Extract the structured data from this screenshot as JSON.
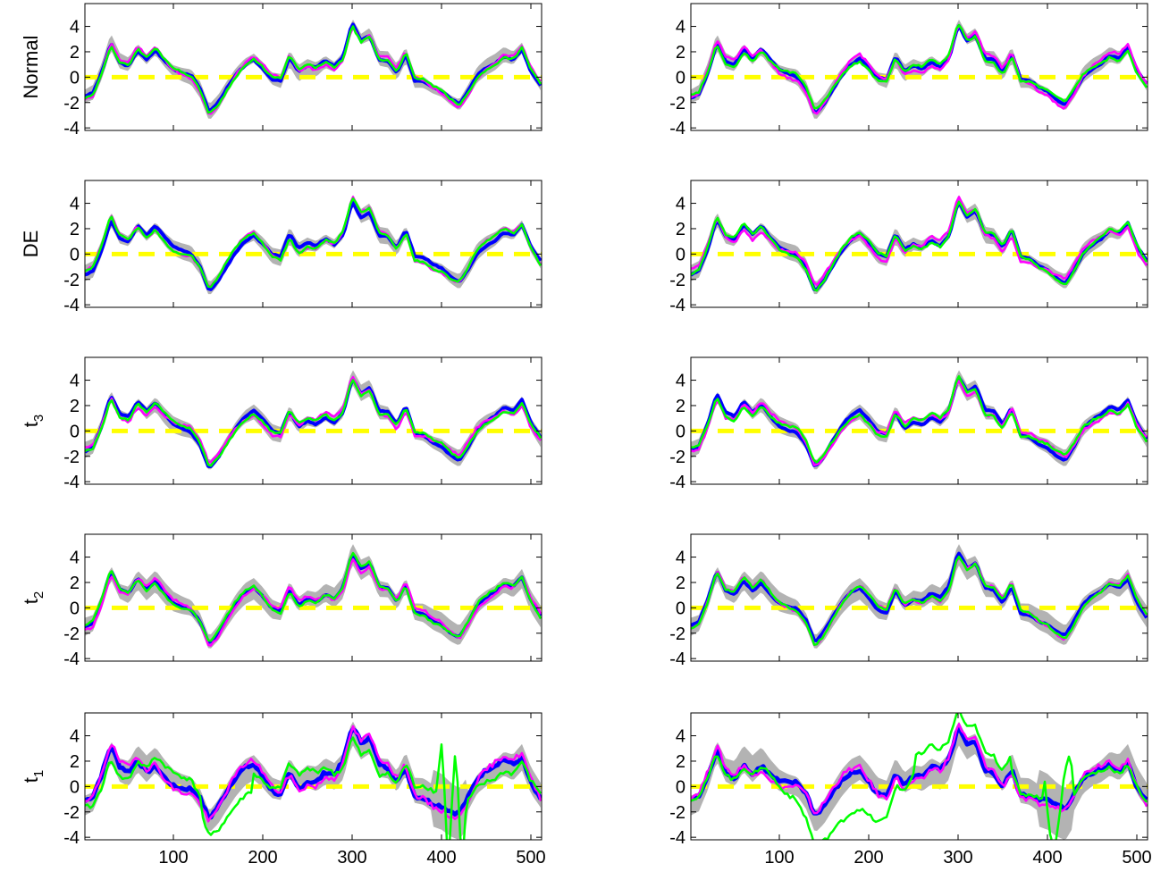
{
  "colors": {
    "band": "#b3b3b3",
    "true_curve": "#0000ff",
    "estimate_magenta": "#ff00ff",
    "estimate_green": "#00ff00",
    "zero_line": "#ffff00",
    "axes": "#000000"
  },
  "chart_data": {
    "type": "line",
    "layout": "5 rows x 2 columns of line plots with grey uncertainty bands",
    "x_range": [
      1,
      512
    ],
    "y_range": [
      -4.2,
      5.8
    ],
    "x_ticks": [
      100,
      200,
      300,
      400,
      500
    ],
    "y_ticks": [
      -4,
      -2,
      0,
      2,
      4
    ],
    "row_labels": [
      {
        "text": "Normal",
        "sub": ""
      },
      {
        "text": "DE",
        "sub": ""
      },
      {
        "text": "t",
        "sub": "3"
      },
      {
        "text": "t",
        "sub": "2"
      },
      {
        "text": "t",
        "sub": "1"
      }
    ],
    "zero_reference": 0,
    "base_signal": {
      "x": [
        1,
        10,
        20,
        30,
        40,
        50,
        60,
        70,
        80,
        90,
        100,
        110,
        120,
        130,
        140,
        150,
        160,
        170,
        180,
        190,
        200,
        210,
        220,
        230,
        240,
        250,
        260,
        270,
        280,
        290,
        300,
        310,
        320,
        330,
        340,
        350,
        360,
        370,
        380,
        390,
        400,
        410,
        420,
        430,
        440,
        450,
        460,
        470,
        480,
        490,
        500,
        512
      ],
      "y": [
        -1.5,
        -1.2,
        0.5,
        2.8,
        1.3,
        1.0,
        2.2,
        1.4,
        2.1,
        1.2,
        0.5,
        0.2,
        0.0,
        -1.0,
        -2.8,
        -2.0,
        -0.8,
        0.3,
        1.1,
        1.5,
        0.8,
        -0.1,
        -0.3,
        1.5,
        0.3,
        0.8,
        0.6,
        1.2,
        0.8,
        1.6,
        4.3,
        3.0,
        3.4,
        1.5,
        1.4,
        0.4,
        1.8,
        -0.3,
        -0.4,
        -0.9,
        -1.2,
        -1.8,
        -2.2,
        -1.1,
        0.2,
        0.8,
        1.2,
        1.8,
        1.5,
        2.3,
        0.5,
        -0.8
      ]
    }
  }
}
